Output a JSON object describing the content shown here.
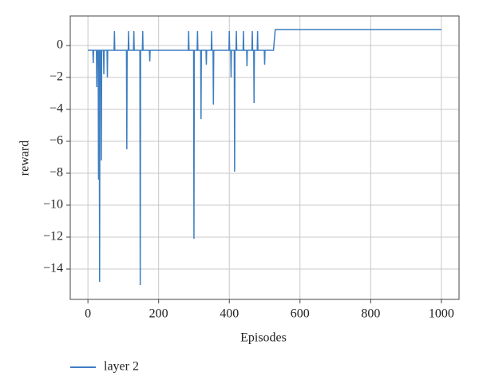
{
  "chart_data": {
    "type": "line",
    "xlabel": "Episodes",
    "ylabel": "reward",
    "x": [
      0,
      10,
      14,
      15,
      16,
      24,
      25,
      26,
      29,
      30,
      31,
      32,
      33,
      34,
      37,
      38,
      39,
      44,
      45,
      46,
      54,
      55,
      56,
      74,
      75,
      76,
      109,
      110,
      111,
      114,
      115,
      116,
      129,
      130,
      131,
      147,
      148,
      149,
      154,
      155,
      156,
      174,
      175,
      176,
      284,
      285,
      286,
      299,
      300,
      301,
      309,
      310,
      311,
      319,
      320,
      321,
      334,
      335,
      336,
      349,
      350,
      351,
      354,
      355,
      356,
      399,
      400,
      401,
      404,
      405,
      406,
      414,
      415,
      416,
      419,
      420,
      421,
      439,
      440,
      441,
      449,
      450,
      451,
      464,
      465,
      466,
      469,
      470,
      471,
      479,
      480,
      481,
      499,
      500,
      501,
      525,
      530,
      1000
    ],
    "series": [
      {
        "name": "layer 2",
        "color": "#3d7dc0",
        "values": [
          -0.3,
          -0.3,
          -0.3,
          -1.1,
          -0.3,
          -0.3,
          -2.6,
          -0.3,
          -0.3,
          -8.4,
          -0.3,
          -0.3,
          -14.8,
          -0.3,
          -0.3,
          -7.2,
          -0.3,
          -0.3,
          -1.8,
          -0.3,
          -0.3,
          -2,
          -0.3,
          -0.3,
          0.9,
          -0.3,
          -0.3,
          -6.5,
          -0.3,
          -0.3,
          0.9,
          -0.3,
          -0.3,
          0.9,
          -0.3,
          -0.3,
          -15,
          -0.3,
          -0.3,
          0.9,
          -0.3,
          -0.3,
          -1,
          -0.3,
          -0.3,
          0.9,
          -0.3,
          -0.3,
          -12.1,
          -0.3,
          -0.3,
          0.9,
          -0.3,
          -0.3,
          -4.6,
          -0.3,
          -0.3,
          -1.2,
          -0.3,
          -0.3,
          0.9,
          -0.3,
          -0.3,
          -3.7,
          -0.3,
          -0.3,
          0.9,
          -0.3,
          -0.3,
          -2,
          -0.3,
          -0.3,
          -7.9,
          -0.3,
          -0.3,
          0.9,
          -0.3,
          -0.3,
          0.9,
          -0.3,
          -0.3,
          -1.3,
          -0.3,
          -0.3,
          0.9,
          -0.3,
          -0.3,
          -3.6,
          -0.3,
          -0.3,
          0.9,
          -0.3,
          -0.3,
          -1.2,
          -0.3,
          -0.3,
          1,
          1
        ]
      }
    ],
    "xlim": [
      -50,
      1050
    ],
    "ylim": [
      -15.9,
      1.85
    ],
    "xticks": [
      0,
      200,
      400,
      600,
      800,
      1000
    ],
    "yticks": [
      0,
      {
        "value": -2,
        "label": "−2"
      },
      {
        "value": -4,
        "label": "−4"
      },
      {
        "value": -6,
        "label": "−6"
      },
      {
        "value": -8,
        "label": "−8"
      },
      {
        "value": -10,
        "label": "−10"
      },
      {
        "value": -12,
        "label": "−12"
      },
      {
        "value": -14,
        "label": "−14"
      }
    ],
    "grid": true,
    "legend": "below-left"
  }
}
